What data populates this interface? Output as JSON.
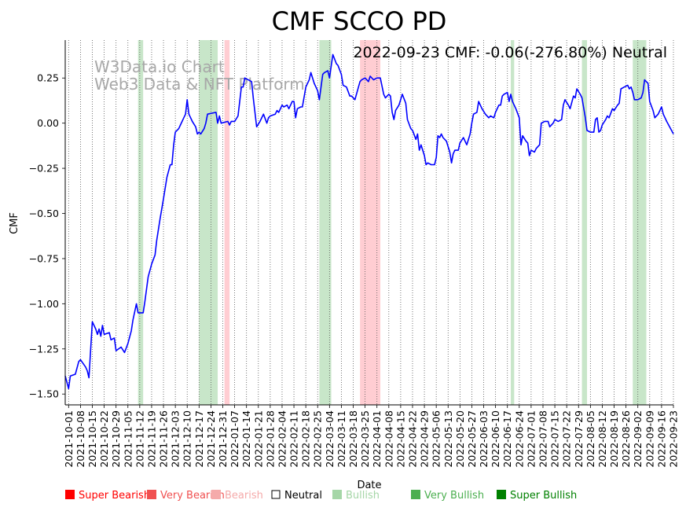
{
  "chart_data": {
    "type": "line",
    "title": "CMF SCCO PD",
    "annotation": "2022-09-23 CMF: -0.06(-276.80%) Neutral",
    "watermark": [
      "W3Data.io Chart",
      "Web3 Data & NFT Platform"
    ],
    "xlabel": "Date",
    "ylabel": "CMF",
    "x_range": [
      "2021-09-29",
      "2022-09-23"
    ],
    "ylim": [
      -1.56,
      0.46
    ],
    "yticks": [
      0.25,
      0.0,
      -0.25,
      -0.5,
      -0.75,
      -1.0,
      -1.25,
      -1.5
    ],
    "ytick_labels": [
      "0.25",
      "0.00",
      "−0.25",
      "−0.50",
      "−0.75",
      "−1.00",
      "−1.25",
      "−1.50"
    ],
    "xtick_labels": [
      "2021-10-01",
      "2021-10-08",
      "2021-10-15",
      "2021-10-22",
      "2021-10-29",
      "2021-11-05",
      "2021-11-12",
      "2021-11-19",
      "2021-11-26",
      "2021-12-03",
      "2021-12-10",
      "2021-12-17",
      "2021-12-24",
      "2021-12-31",
      "2022-01-07",
      "2022-01-14",
      "2022-01-21",
      "2022-01-28",
      "2022-02-04",
      "2022-02-11",
      "2022-02-18",
      "2022-02-25",
      "2022-03-04",
      "2022-03-11",
      "2022-03-18",
      "2022-03-25",
      "2022-04-01",
      "2022-04-08",
      "2022-04-15",
      "2022-04-22",
      "2022-04-29",
      "2022-05-06",
      "2022-05-13",
      "2022-05-20",
      "2022-05-27",
      "2022-06-03",
      "2022-06-10",
      "2022-06-17",
      "2022-06-24",
      "2022-07-01",
      "2022-07-08",
      "2022-07-15",
      "2022-07-22",
      "2022-07-29",
      "2022-08-05",
      "2022-08-12",
      "2022-08-19",
      "2022-08-26",
      "2022-09-02",
      "2022-09-09",
      "2022-09-16",
      "2022-09-23"
    ],
    "grid": "vertical dotted lines at each x tick",
    "line_color": "#0000ff",
    "series": [
      {
        "points": [
          [
            "2021-09-29",
            -1.4
          ],
          [
            "2021-10-01",
            -1.47
          ],
          [
            "2021-10-02",
            -1.4
          ],
          [
            "2021-10-05",
            -1.39
          ],
          [
            "2021-10-07",
            -1.32
          ],
          [
            "2021-10-08",
            -1.31
          ],
          [
            "2021-10-11",
            -1.35
          ],
          [
            "2021-10-12",
            -1.37
          ],
          [
            "2021-10-13",
            -1.41
          ],
          [
            "2021-10-15",
            -1.1
          ],
          [
            "2021-10-17",
            -1.14
          ],
          [
            "2021-10-18",
            -1.17
          ],
          [
            "2021-10-19",
            -1.14
          ],
          [
            "2021-10-20",
            -1.18
          ],
          [
            "2021-10-21",
            -1.12
          ],
          [
            "2021-10-22",
            -1.17
          ],
          [
            "2021-10-25",
            -1.16
          ],
          [
            "2021-10-26",
            -1.2
          ],
          [
            "2021-10-28",
            -1.19
          ],
          [
            "2021-10-29",
            -1.26
          ],
          [
            "2021-11-01",
            -1.24
          ],
          [
            "2021-11-03",
            -1.27
          ],
          [
            "2021-11-05",
            -1.22
          ],
          [
            "2021-11-07",
            -1.15
          ],
          [
            "2021-11-08",
            -1.09
          ],
          [
            "2021-11-10",
            -1.0
          ],
          [
            "2021-11-11",
            -1.05
          ],
          [
            "2021-11-14",
            -1.05
          ],
          [
            "2021-11-15",
            -0.99
          ],
          [
            "2021-11-17",
            -0.85
          ],
          [
            "2021-11-19",
            -0.78
          ],
          [
            "2021-11-21",
            -0.73
          ],
          [
            "2021-11-22",
            -0.65
          ],
          [
            "2021-11-24",
            -0.53
          ],
          [
            "2021-11-26",
            -0.42
          ],
          [
            "2021-11-28",
            -0.3
          ],
          [
            "2021-11-30",
            -0.23
          ],
          [
            "2021-12-01",
            -0.23
          ],
          [
            "2021-12-02",
            -0.12
          ],
          [
            "2021-12-03",
            -0.05
          ],
          [
            "2021-12-05",
            -0.03
          ],
          [
            "2021-12-06",
            -0.01
          ],
          [
            "2021-12-08",
            0.03
          ],
          [
            "2021-12-09",
            0.05
          ],
          [
            "2021-12-10",
            0.13
          ],
          [
            "2021-12-11",
            0.05
          ],
          [
            "2021-12-13",
            0.01
          ],
          [
            "2021-12-15",
            -0.02
          ],
          [
            "2021-12-16",
            -0.06
          ],
          [
            "2021-12-17",
            -0.05
          ],
          [
            "2021-12-18",
            -0.06
          ],
          [
            "2021-12-20",
            -0.03
          ],
          [
            "2021-12-21",
            0.0
          ],
          [
            "2021-12-22",
            0.05
          ],
          [
            "2021-12-27",
            0.06
          ],
          [
            "2021-12-28",
            0.0
          ],
          [
            "2021-12-29",
            0.04
          ],
          [
            "2021-12-30",
            0.0
          ],
          [
            "2022-01-03",
            0.01
          ],
          [
            "2022-01-04",
            -0.01
          ],
          [
            "2022-01-05",
            0.01
          ],
          [
            "2022-01-07",
            0.01
          ],
          [
            "2022-01-09",
            0.04
          ],
          [
            "2022-01-11",
            0.2
          ],
          [
            "2022-01-12",
            0.2
          ],
          [
            "2022-01-13",
            0.25
          ],
          [
            "2022-01-17",
            0.23
          ],
          [
            "2022-01-18",
            0.14
          ],
          [
            "2022-01-20",
            -0.02
          ],
          [
            "2022-01-22",
            0.01
          ],
          [
            "2022-01-24",
            0.05
          ],
          [
            "2022-01-26",
            0.0
          ],
          [
            "2022-01-27",
            0.03
          ],
          [
            "2022-01-28",
            0.04
          ],
          [
            "2022-01-31",
            0.05
          ],
          [
            "2022-02-01",
            0.07
          ],
          [
            "2022-02-02",
            0.06
          ],
          [
            "2022-02-04",
            0.1
          ],
          [
            "2022-02-05",
            0.09
          ],
          [
            "2022-02-07",
            0.1
          ],
          [
            "2022-02-08",
            0.08
          ],
          [
            "2022-02-10",
            0.12
          ],
          [
            "2022-02-11",
            0.12
          ],
          [
            "2022-02-12",
            0.03
          ],
          [
            "2022-02-13",
            0.08
          ],
          [
            "2022-02-15",
            0.09
          ],
          [
            "2022-02-16",
            0.09
          ],
          [
            "2022-02-18",
            0.2
          ],
          [
            "2022-02-20",
            0.24
          ],
          [
            "2022-02-21",
            0.28
          ],
          [
            "2022-02-23",
            0.22
          ],
          [
            "2022-02-25",
            0.18
          ],
          [
            "2022-02-26",
            0.13
          ],
          [
            "2022-02-28",
            0.27
          ],
          [
            "2022-03-01",
            0.28
          ],
          [
            "2022-03-03",
            0.29
          ],
          [
            "2022-03-04",
            0.25
          ],
          [
            "2022-03-06",
            0.38
          ],
          [
            "2022-03-08",
            0.33
          ],
          [
            "2022-03-09",
            0.32
          ],
          [
            "2022-03-11",
            0.27
          ],
          [
            "2022-03-12",
            0.21
          ],
          [
            "2022-03-14",
            0.2
          ],
          [
            "2022-03-16",
            0.15
          ],
          [
            "2022-03-17",
            0.15
          ],
          [
            "2022-03-19",
            0.13
          ],
          [
            "2022-03-22",
            0.23
          ],
          [
            "2022-03-23",
            0.24
          ],
          [
            "2022-03-25",
            0.25
          ],
          [
            "2022-03-27",
            0.23
          ],
          [
            "2022-03-28",
            0.26
          ],
          [
            "2022-03-30",
            0.24
          ],
          [
            "2022-04-01",
            0.25
          ],
          [
            "2022-04-03",
            0.25
          ],
          [
            "2022-04-05",
            0.16
          ],
          [
            "2022-04-06",
            0.14
          ],
          [
            "2022-04-08",
            0.16
          ],
          [
            "2022-04-09",
            0.15
          ],
          [
            "2022-04-10",
            0.06
          ],
          [
            "2022-04-11",
            0.02
          ],
          [
            "2022-04-12",
            0.07
          ],
          [
            "2022-04-14",
            0.1
          ],
          [
            "2022-04-16",
            0.16
          ],
          [
            "2022-04-18",
            0.11
          ],
          [
            "2022-04-19",
            0.02
          ],
          [
            "2022-04-21",
            -0.03
          ],
          [
            "2022-04-22",
            -0.04
          ],
          [
            "2022-04-24",
            -0.09
          ],
          [
            "2022-04-25",
            -0.06
          ],
          [
            "2022-04-26",
            -0.15
          ],
          [
            "2022-04-27",
            -0.12
          ],
          [
            "2022-04-29",
            -0.18
          ],
          [
            "2022-04-30",
            -0.23
          ],
          [
            "2022-05-01",
            -0.22
          ],
          [
            "2022-05-03",
            -0.23
          ],
          [
            "2022-05-05",
            -0.23
          ],
          [
            "2022-05-06",
            -0.19
          ],
          [
            "2022-05-07",
            -0.07
          ],
          [
            "2022-05-08",
            -0.08
          ],
          [
            "2022-05-09",
            -0.06
          ],
          [
            "2022-05-10",
            -0.08
          ],
          [
            "2022-05-12",
            -0.1
          ],
          [
            "2022-05-14",
            -0.16
          ],
          [
            "2022-05-15",
            -0.22
          ],
          [
            "2022-05-16",
            -0.17
          ],
          [
            "2022-05-17",
            -0.15
          ],
          [
            "2022-05-19",
            -0.15
          ],
          [
            "2022-05-20",
            -0.11
          ],
          [
            "2022-05-22",
            -0.08
          ],
          [
            "2022-05-24",
            -0.12
          ],
          [
            "2022-05-26",
            -0.06
          ],
          [
            "2022-05-27",
            0.0
          ],
          [
            "2022-05-28",
            0.05
          ],
          [
            "2022-05-30",
            0.06
          ],
          [
            "2022-05-31",
            0.12
          ],
          [
            "2022-06-02",
            0.08
          ],
          [
            "2022-06-04",
            0.05
          ],
          [
            "2022-06-06",
            0.03
          ],
          [
            "2022-06-07",
            0.04
          ],
          [
            "2022-06-09",
            0.03
          ],
          [
            "2022-06-10",
            0.06
          ],
          [
            "2022-06-12",
            0.1
          ],
          [
            "2022-06-13",
            0.1
          ],
          [
            "2022-06-14",
            0.15
          ],
          [
            "2022-06-15",
            0.16
          ],
          [
            "2022-06-17",
            0.17
          ],
          [
            "2022-06-18",
            0.12
          ],
          [
            "2022-06-19",
            0.16
          ],
          [
            "2022-06-20",
            0.12
          ],
          [
            "2022-06-22",
            0.08
          ],
          [
            "2022-06-24",
            0.03
          ],
          [
            "2022-06-25",
            -0.12
          ],
          [
            "2022-06-26",
            -0.07
          ],
          [
            "2022-06-28",
            -0.1
          ],
          [
            "2022-06-29",
            -0.11
          ],
          [
            "2022-06-30",
            -0.18
          ],
          [
            "2022-07-01",
            -0.15
          ],
          [
            "2022-07-03",
            -0.16
          ],
          [
            "2022-07-04",
            -0.14
          ],
          [
            "2022-07-06",
            -0.12
          ],
          [
            "2022-07-07",
            0.0
          ],
          [
            "2022-07-09",
            0.01
          ],
          [
            "2022-07-11",
            0.01
          ],
          [
            "2022-07-12",
            -0.02
          ],
          [
            "2022-07-14",
            0.0
          ],
          [
            "2022-07-15",
            0.02
          ],
          [
            "2022-07-17",
            0.01
          ],
          [
            "2022-07-19",
            0.02
          ],
          [
            "2022-07-20",
            0.1
          ],
          [
            "2022-07-21",
            0.13
          ],
          [
            "2022-07-23",
            0.1
          ],
          [
            "2022-07-24",
            0.08
          ],
          [
            "2022-07-26",
            0.15
          ],
          [
            "2022-07-27",
            0.14
          ],
          [
            "2022-07-28",
            0.19
          ],
          [
            "2022-07-30",
            0.16
          ],
          [
            "2022-07-31",
            0.14
          ],
          [
            "2022-08-02",
            0.03
          ],
          [
            "2022-08-03",
            -0.04
          ],
          [
            "2022-08-05",
            -0.05
          ],
          [
            "2022-08-07",
            -0.05
          ],
          [
            "2022-08-08",
            0.02
          ],
          [
            "2022-08-09",
            0.03
          ],
          [
            "2022-08-10",
            -0.05
          ],
          [
            "2022-08-11",
            -0.04
          ],
          [
            "2022-08-12",
            -0.01
          ],
          [
            "2022-08-14",
            0.02
          ],
          [
            "2022-08-15",
            0.04
          ],
          [
            "2022-08-16",
            0.03
          ],
          [
            "2022-08-18",
            0.08
          ],
          [
            "2022-08-19",
            0.07
          ],
          [
            "2022-08-21",
            0.1
          ],
          [
            "2022-08-22",
            0.11
          ],
          [
            "2022-08-23",
            0.19
          ],
          [
            "2022-08-25",
            0.2
          ],
          [
            "2022-08-27",
            0.21
          ],
          [
            "2022-08-28",
            0.19
          ],
          [
            "2022-08-29",
            0.2
          ],
          [
            "2022-08-30",
            0.17
          ],
          [
            "2022-08-31",
            0.13
          ],
          [
            "2022-09-02",
            0.13
          ],
          [
            "2022-09-04",
            0.14
          ],
          [
            "2022-09-05",
            0.17
          ],
          [
            "2022-09-06",
            0.24
          ],
          [
            "2022-09-08",
            0.22
          ],
          [
            "2022-09-09",
            0.12
          ],
          [
            "2022-09-11",
            0.07
          ],
          [
            "2022-09-12",
            0.03
          ],
          [
            "2022-09-14",
            0.05
          ],
          [
            "2022-09-16",
            0.09
          ],
          [
            "2022-09-17",
            0.05
          ],
          [
            "2022-09-19",
            0.01
          ],
          [
            "2022-09-23",
            -0.06
          ]
        ]
      }
    ],
    "bands": [
      {
        "start": "2021-11-11",
        "end": "2021-11-14",
        "level": "Bullish",
        "color": "#c8e6c9"
      },
      {
        "start": "2021-12-17",
        "end": "2021-12-28",
        "level": "Bullish",
        "color": "#c8e6c9"
      },
      {
        "start": "2022-01-01",
        "end": "2022-01-04",
        "level": "Bearish",
        "color": "#ffcdd2"
      },
      {
        "start": "2022-02-26",
        "end": "2022-03-05",
        "level": "Bullish",
        "color": "#c8e6c9"
      },
      {
        "start": "2022-03-22",
        "end": "2022-04-03",
        "level": "Bearish",
        "color": "#ffcdd2"
      },
      {
        "start": "2022-06-19",
        "end": "2022-06-21",
        "level": "Bullish",
        "color": "#c8e6c9"
      },
      {
        "start": "2022-07-31",
        "end": "2022-08-03",
        "level": "Bullish",
        "color": "#c8e6c9"
      },
      {
        "start": "2022-08-30",
        "end": "2022-09-07",
        "level": "Bullish",
        "color": "#c8e6c9"
      }
    ],
    "legend": [
      {
        "label": "Super Bearish",
        "color": "#ff0000"
      },
      {
        "label": "Very Bearish",
        "color": "#f05050"
      },
      {
        "label": "Bearish",
        "color": "#f5aaaa"
      },
      {
        "label": "Neutral",
        "color": "#000000",
        "hollow": true
      },
      {
        "label": "Bullish",
        "color": "#a5d6a7"
      },
      {
        "label": "Very Bullish",
        "color": "#4caf50"
      },
      {
        "label": "Super Bullish",
        "color": "#008000"
      }
    ]
  }
}
